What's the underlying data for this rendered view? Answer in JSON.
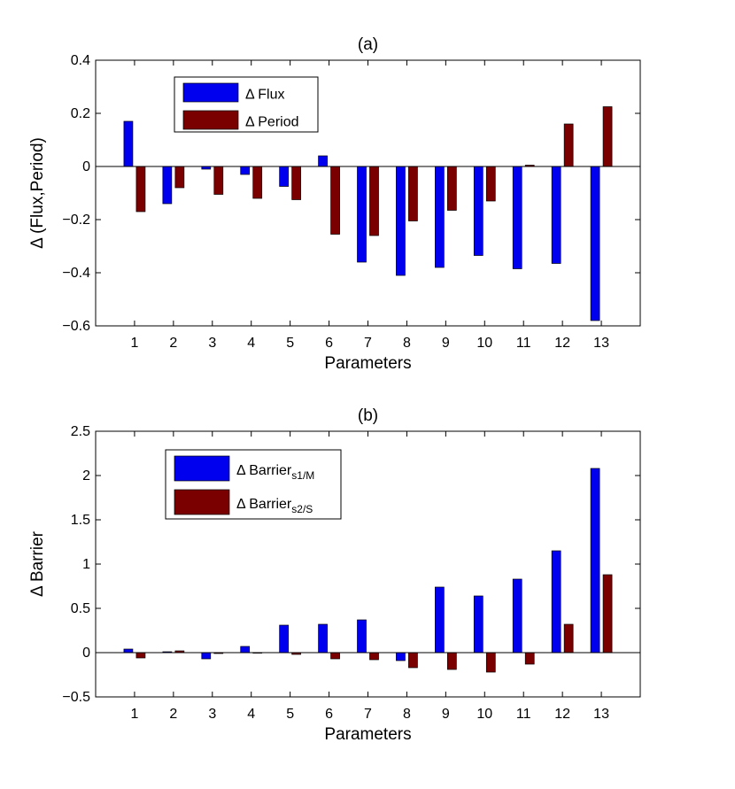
{
  "chart_data": [
    {
      "type": "bar",
      "title": "(a)",
      "xlabel": "Parameters",
      "ylabel": "Δ (Flux,Period)",
      "categories": [
        "1",
        "2",
        "3",
        "4",
        "5",
        "6",
        "7",
        "8",
        "9",
        "10",
        "11",
        "12",
        "13"
      ],
      "ylim": [
        -0.6,
        0.4
      ],
      "yticks": [
        -0.6,
        -0.4,
        -0.2,
        0,
        0.2,
        0.4
      ],
      "ytick_labels": [
        "−0.6",
        "−0.4",
        "−0.2",
        "0",
        "0.2",
        "0.4"
      ],
      "series": [
        {
          "name": "Δ Flux",
          "color": "#0000ee",
          "values": [
            0.17,
            -0.14,
            -0.01,
            -0.03,
            -0.075,
            0.04,
            -0.36,
            -0.41,
            -0.38,
            -0.335,
            -0.385,
            -0.365,
            -0.58
          ]
        },
        {
          "name": "Δ Period",
          "color": "#7a0000",
          "values": [
            -0.17,
            -0.08,
            -0.105,
            -0.12,
            -0.125,
            -0.255,
            -0.26,
            -0.205,
            -0.165,
            -0.13,
            0.005,
            0.16,
            0.225
          ]
        }
      ],
      "legend": [
        {
          "base": "Δ Flux",
          "sub": ""
        },
        {
          "base": "Δ Period",
          "sub": ""
        }
      ],
      "legend_position": "top-left"
    },
    {
      "type": "bar",
      "title": "(b)",
      "xlabel": "Parameters",
      "ylabel": "Δ Barrier",
      "categories": [
        "1",
        "2",
        "3",
        "4",
        "5",
        "6",
        "7",
        "8",
        "9",
        "10",
        "11",
        "12",
        "13"
      ],
      "ylim": [
        -0.5,
        2.5
      ],
      "yticks": [
        -0.5,
        0,
        0.5,
        1,
        1.5,
        2,
        2.5
      ],
      "ytick_labels": [
        "−0.5",
        "0",
        "0.5",
        "1",
        "1.5",
        "2",
        "2.5"
      ],
      "series": [
        {
          "name": "Δ Barrier s1/M",
          "color": "#0000ee",
          "values": [
            0.04,
            0.01,
            -0.07,
            0.07,
            0.31,
            0.32,
            0.37,
            -0.09,
            0.74,
            0.64,
            0.83,
            1.15,
            2.08
          ]
        },
        {
          "name": "Δ Barrier s2/S",
          "color": "#7a0000",
          "values": [
            -0.06,
            0.02,
            -0.01,
            0.0,
            -0.02,
            -0.07,
            -0.08,
            -0.17,
            -0.19,
            -0.22,
            -0.13,
            0.32,
            0.88
          ]
        }
      ],
      "legend": [
        {
          "base": "Δ Barrier",
          "sub": "s1/M"
        },
        {
          "base": "Δ Barrier",
          "sub": "s2/S"
        }
      ],
      "legend_position": "top-left"
    }
  ]
}
